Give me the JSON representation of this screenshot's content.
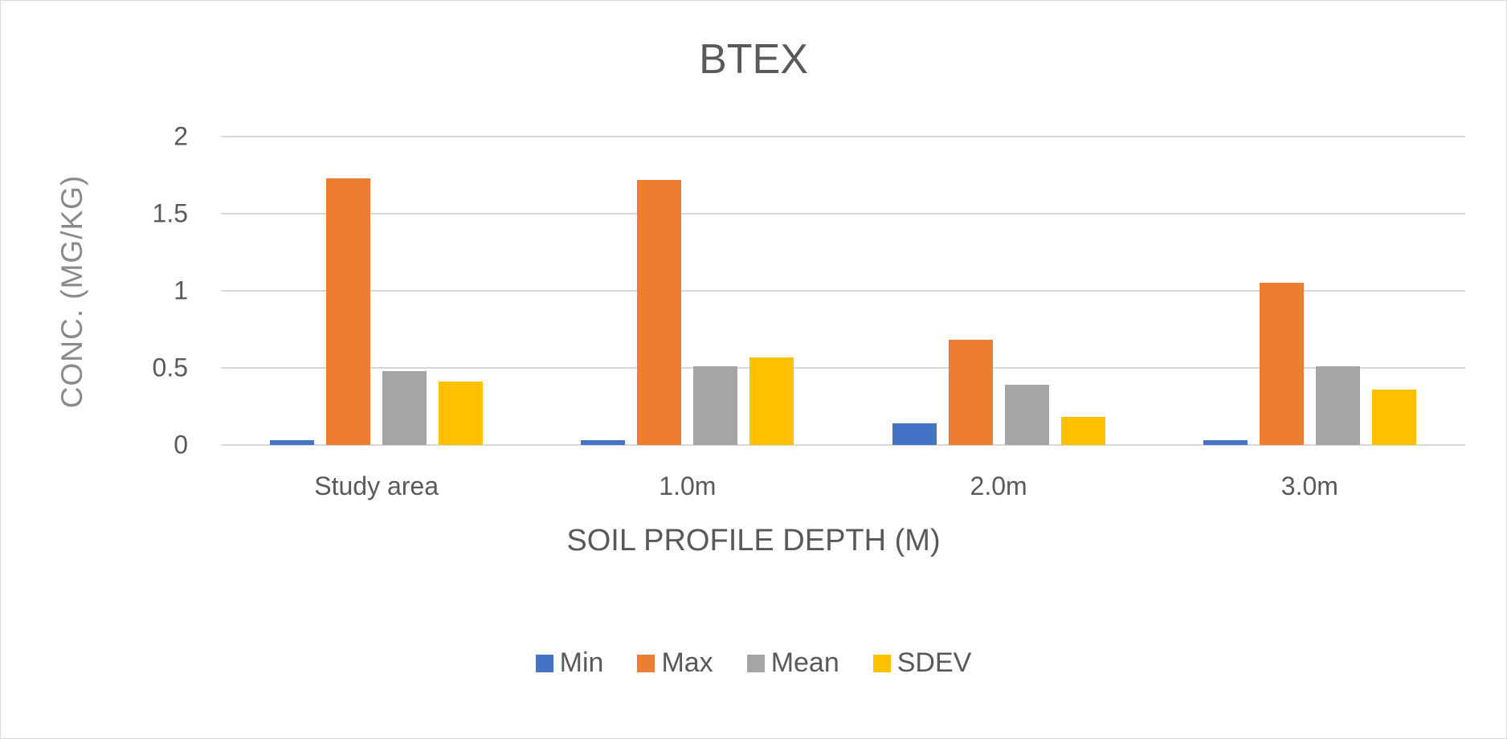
{
  "chart_data": {
    "type": "bar",
    "title": "BTEX",
    "xlabel": "SOIL PROFILE DEPTH (M)",
    "ylabel": "CONC. (MG/KG)",
    "categories": [
      "Study area",
      "1.0m",
      "2.0m",
      "3.0m"
    ],
    "series": [
      {
        "name": "Min",
        "color": "#4472C4",
        "values": [
          0.03,
          0.03,
          0.14,
          0.03
        ]
      },
      {
        "name": "Max",
        "color": "#ED7D31",
        "values": [
          1.73,
          1.72,
          0.68,
          1.05
        ]
      },
      {
        "name": "Mean",
        "color": "#A5A5A5",
        "values": [
          0.48,
          0.51,
          0.39,
          0.51
        ]
      },
      {
        "name": "SDEV",
        "color": "#FFC000",
        "values": [
          0.41,
          0.57,
          0.18,
          0.36
        ]
      }
    ],
    "ylim": [
      0,
      2
    ],
    "yticks": [
      "0",
      "0.5",
      "1",
      "1.5",
      "2"
    ],
    "grid": true,
    "legend_position": "bottom"
  }
}
